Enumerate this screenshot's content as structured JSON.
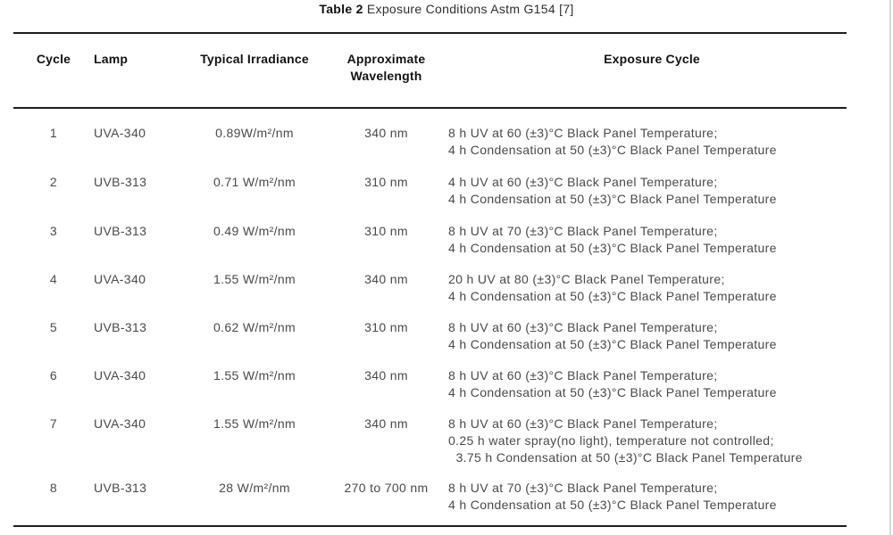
{
  "title": {
    "bold": "Table 2",
    "rest": " Exposure Conditions Astm G154 [7]"
  },
  "table": {
    "headers": {
      "cycle": "Cycle",
      "lamp": "Lamp",
      "irradiance": "Typical Irradiance",
      "wavelength": "Approximate\nWavelength",
      "exposure": "Exposure Cycle"
    },
    "rows": [
      {
        "cycle": "1",
        "lamp": "UVA-340",
        "irradiance": "0.89W/m²/nm",
        "wavelength": "340 nm",
        "exposure": [
          "8 h UV at 60 (±3)°C Black Panel Temperature;",
          "4 h Condensation at 50 (±3)°C Black Panel Temperature"
        ]
      },
      {
        "cycle": "2",
        "lamp": "UVB-313",
        "irradiance": "0.71 W/m²/nm",
        "wavelength": "310 nm",
        "exposure": [
          "4 h UV at 60 (±3)°C Black Panel Temperature;",
          "4 h Condensation at 50 (±3)°C Black Panel Temperature"
        ]
      },
      {
        "cycle": "3",
        "lamp": "UVB-313",
        "irradiance": "0.49 W/m²/nm",
        "wavelength": "310 nm",
        "exposure": [
          "8 h UV at 70 (±3)°C Black Panel Temperature;",
          "4 h Condensation at 50 (±3)°C Black Panel Temperature"
        ]
      },
      {
        "cycle": "4",
        "lamp": "UVA-340",
        "irradiance": "1.55 W/m²/nm",
        "wavelength": "340 nm",
        "exposure": [
          "20 h UV at 80 (±3)°C Black Panel Temperature;",
          "4 h Condensation at 50 (±3)°C Black Panel Temperature"
        ]
      },
      {
        "cycle": "5",
        "lamp": "UVB-313",
        "irradiance": "0.62 W/m²/nm",
        "wavelength": "310 nm",
        "exposure": [
          "8 h UV at 60 (±3)°C Black Panel Temperature;",
          "4 h Condensation at 50 (±3)°C Black Panel Temperature"
        ]
      },
      {
        "cycle": "6",
        "lamp": "UVA-340",
        "irradiance": "1.55 W/m²/nm",
        "wavelength": "340 nm",
        "exposure": [
          "8 h UV at 60 (±3)°C Black Panel Temperature;",
          "4 h Condensation at 50 (±3)°C Black Panel Temperature"
        ]
      },
      {
        "cycle": "7",
        "lamp": "UVA-340",
        "irradiance": "1.55 W/m²/nm",
        "wavelength": "340 nm",
        "exposure": [
          "8 h UV at 60 (±3)°C Black Panel Temperature;",
          "0.25 h water spray(no light), temperature not controlled;",
          "  3.75 h Condensation at 50 (±3)°C Black Panel Temperature"
        ]
      },
      {
        "cycle": "8",
        "lamp": "UVB-313",
        "irradiance": "28 W/m²/nm",
        "wavelength": "270 to 700 nm",
        "exposure": [
          "8 h UV at 70 (±3)°C Black Panel Temperature;",
          "4 h Condensation at 50 (±3)°C Black Panel Temperature"
        ]
      }
    ]
  },
  "colors": {
    "background": "#ffffff",
    "body_text": "#4a4a4a",
    "heading_text": "#121212",
    "rule": "#1e1e1e",
    "page_edge": "#d9d9d9"
  }
}
